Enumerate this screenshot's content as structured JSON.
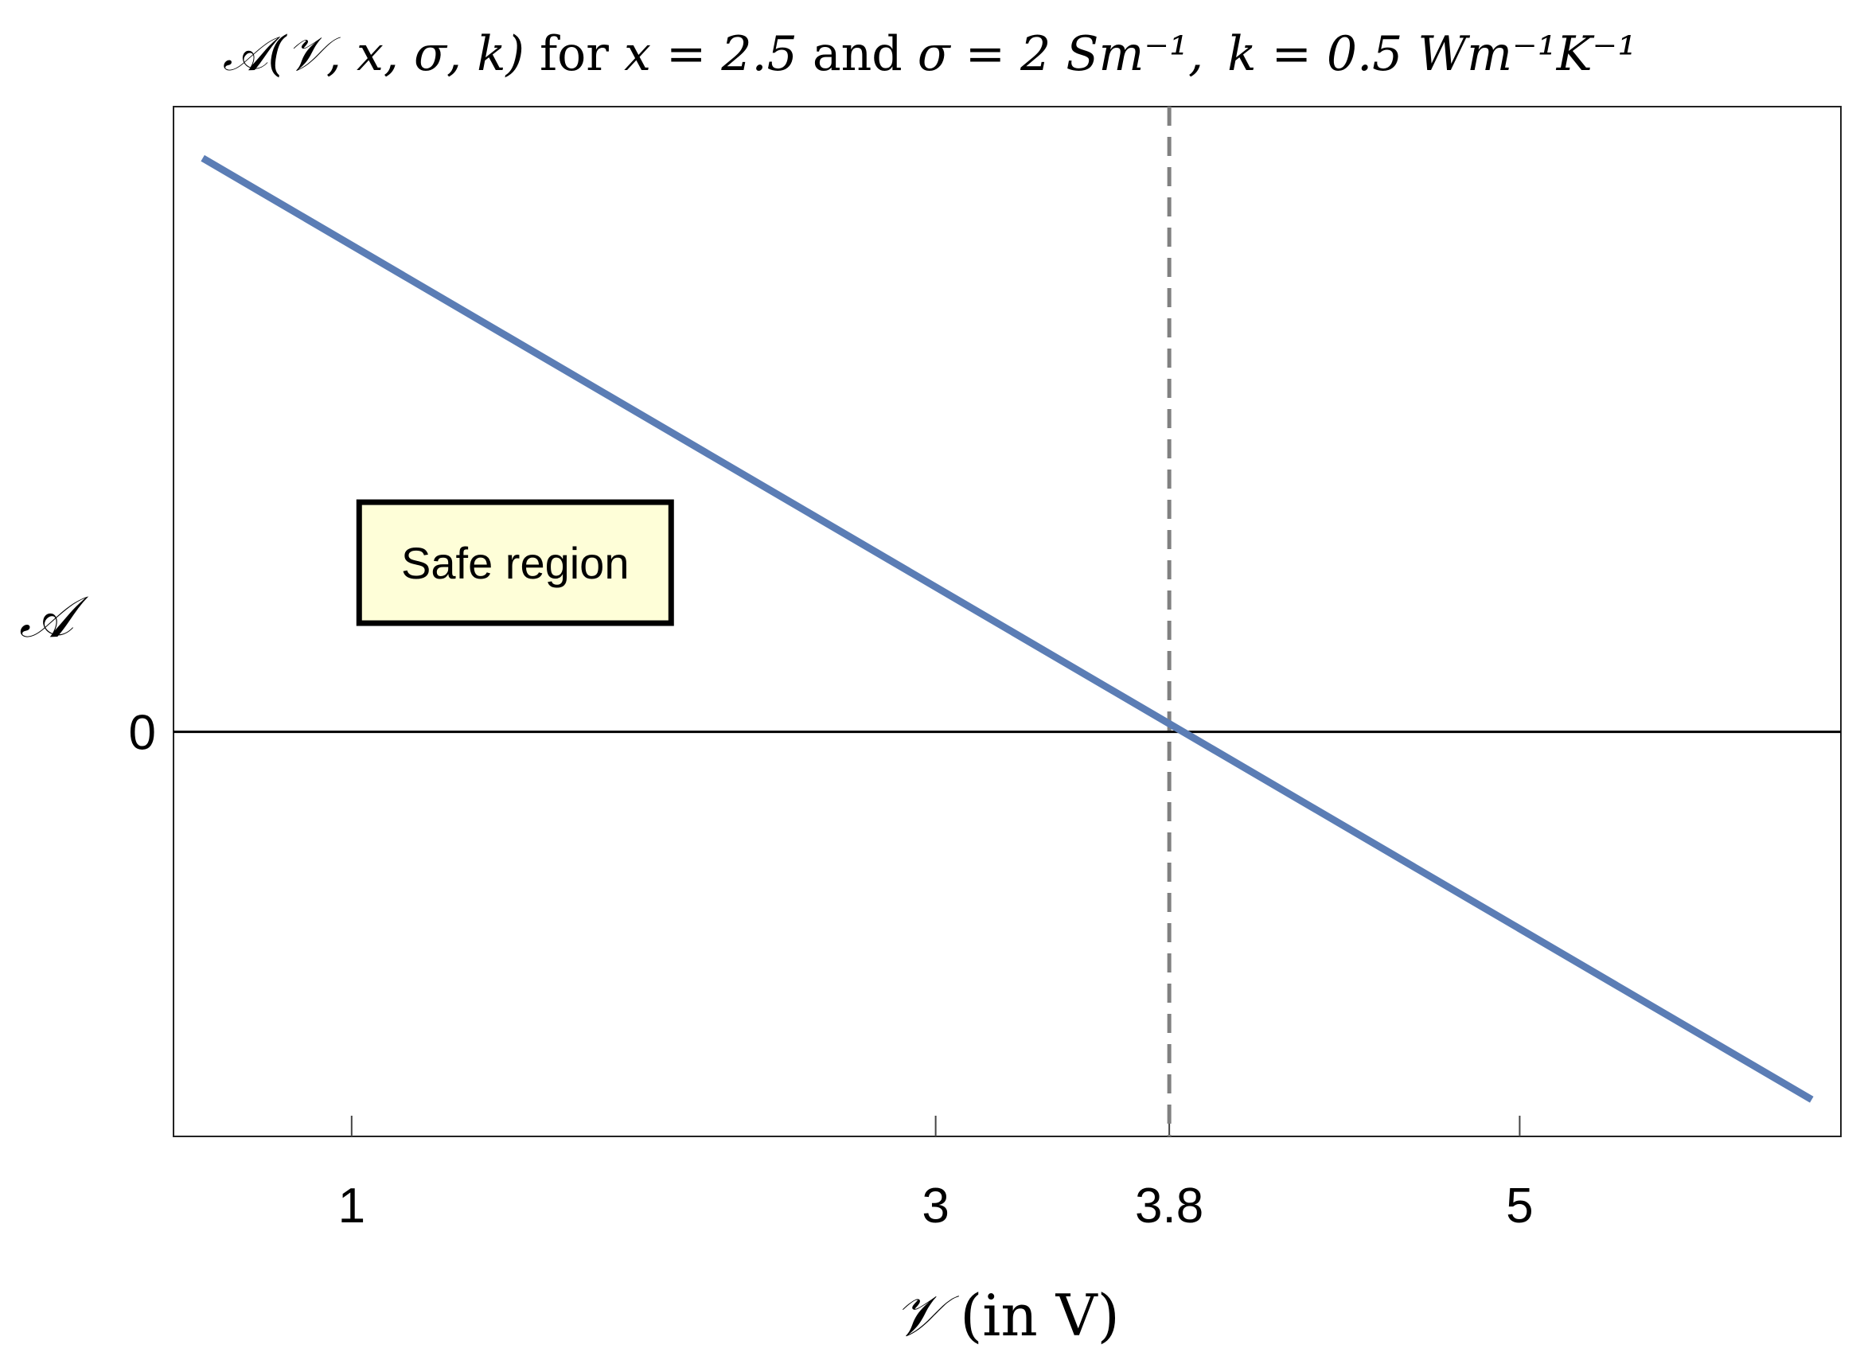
{
  "chart_data": {
    "type": "line",
    "title": {
      "func": "𝒜(𝒱, x, σ, k)",
      "for": " for ",
      "xeq": "x = 2.5",
      "and": " and ",
      "sigmaeq": "σ = 2 Sm⁻¹,",
      "keq": "k = 0.5 Wm⁻¹K⁻¹"
    },
    "xlabel": {
      "symbol": "𝒱",
      "unit": " (in V)"
    },
    "ylabel": "𝒜",
    "xlim": [
      0.39,
      6.1
    ],
    "ylim": [
      -1.1,
      1.7
    ],
    "x_ticks": [
      {
        "value": 1,
        "label": "1"
      },
      {
        "value": 3,
        "label": "3"
      },
      {
        "value": 3.8,
        "label": "3.8"
      },
      {
        "value": 5,
        "label": "5"
      }
    ],
    "y_ticks": [
      {
        "value": 0,
        "label": "0"
      }
    ],
    "series": [
      {
        "x": [
          0.49,
          6.0
        ],
        "y": [
          1.56,
          -1.0
        ],
        "color": "#5b7db5"
      }
    ],
    "reference_lines": {
      "horizontal_y": 0,
      "vertical_x": 3.8,
      "vertical_style": "dashed",
      "vertical_color": "#808080"
    },
    "annotation": {
      "text": "Safe region",
      "x": 1.56,
      "y": 0.46,
      "fill": "#fefed8"
    },
    "grid": false
  }
}
